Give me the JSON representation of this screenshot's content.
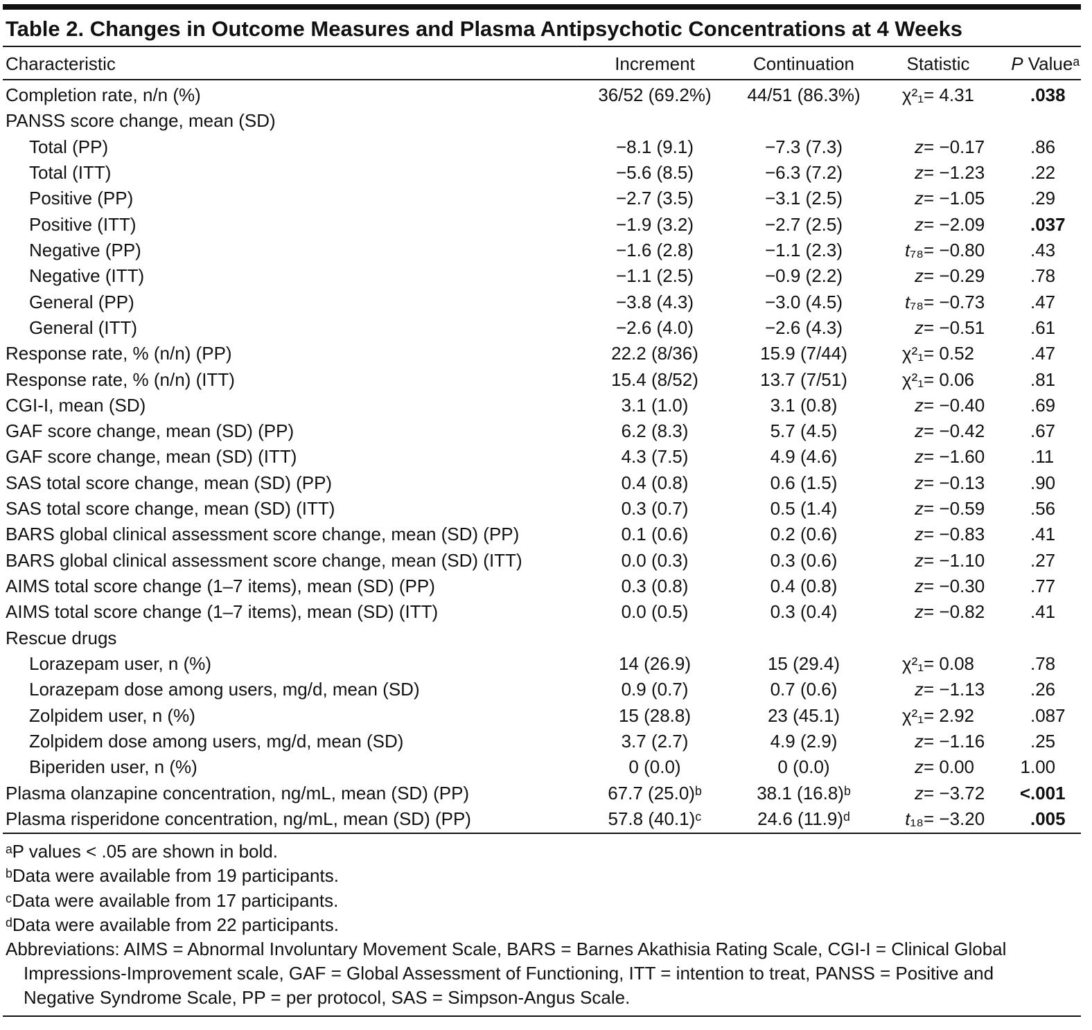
{
  "table": {
    "title": "Table 2. Changes in Outcome Measures and Plasma Antipsychotic Concentrations at 4 Weeks",
    "header": [
      "Characteristic",
      "Increment",
      "Continuation",
      "Statistic",
      "P Valueᵃ"
    ],
    "rows": [
      {
        "characteristic": "Completion rate, n/n (%)",
        "increment": "36/52 (69.2%)",
        "continuation": "44/51 (86.3%)",
        "statistic": "χ²₁ = 4.31",
        "p_value": ".038",
        "p_bold": true
      },
      {
        "characteristic": "PANSS score change, mean (SD)",
        "rows": [
          {
            "characteristic": "Total (PP)",
            "increment": "−8.1 (9.1)",
            "continuation": "−7.3 (7.3)",
            "statistic": "z = −0.17",
            "p_value": ".86"
          },
          {
            "characteristic": "Total (ITT)",
            "increment": "−5.6 (8.5)",
            "continuation": "−6.3 (7.2)",
            "statistic": "z = −1.23",
            "p_value": ".22"
          },
          {
            "characteristic": "Positive (PP)",
            "increment": "−2.7 (3.5)",
            "continuation": "−3.1 (2.5)",
            "statistic": "z = −1.05",
            "p_value": ".29"
          },
          {
            "characteristic": "Positive (ITT)",
            "increment": "−1.9 (3.2)",
            "continuation": "−2.7 (2.5)",
            "statistic": "z = −2.09",
            "p_value": ".037",
            "p_bold": true
          },
          {
            "characteristic": "Negative (PP)",
            "increment": "−1.6 (2.8)",
            "continuation": "−1.1 (2.3)",
            "statistic": "t₇₈ = −0.80",
            "p_value": ".43"
          },
          {
            "characteristic": "Negative (ITT)",
            "increment": "−1.1 (2.5)",
            "continuation": "−0.9 (2.2)",
            "statistic": "z = −0.29",
            "p_value": ".78"
          },
          {
            "characteristic": "General (PP)",
            "increment": "−3.8 (4.3)",
            "continuation": "−3.0 (4.5)",
            "statistic": "t₇₈ = −0.73",
            "p_value": ".47"
          },
          {
            "characteristic": "General (ITT)",
            "increment": "−2.6 (4.0)",
            "continuation": "−2.6 (4.3)",
            "statistic": "z = −0.51",
            "p_value": ".61"
          }
        ]
      },
      {
        "characteristic": "Response rate, % (n/n) (PP)",
        "increment": "22.2 (8/36)",
        "continuation": "15.9 (7/44)",
        "statistic": "χ²₁ = 0.52",
        "p_value": ".47"
      },
      {
        "characteristic": "Response rate, % (n/n) (ITT)",
        "increment": "15.4 (8/52)",
        "continuation": "13.7 (7/51)",
        "statistic": "χ²₁ = 0.06",
        "p_value": ".81"
      },
      {
        "characteristic": "CGI-I, mean (SD)",
        "increment": "3.1 (1.0)",
        "continuation": "3.1 (0.8)",
        "statistic": "z = −0.40",
        "p_value": ".69"
      },
      {
        "characteristic": "GAF score change, mean (SD) (PP)",
        "increment": "6.2 (8.3)",
        "continuation": "5.7 (4.5)",
        "statistic": "z = −0.42",
        "p_value": ".67"
      },
      {
        "characteristic": "GAF score change, mean (SD) (ITT)",
        "increment": "4.3 (7.5)",
        "continuation": "4.9 (4.6)",
        "statistic": "z = −1.60",
        "p_value": ".11"
      },
      {
        "characteristic": "SAS total score change, mean (SD) (PP)",
        "increment": "0.4 (0.8)",
        "continuation": "0.6 (1.5)",
        "statistic": "z = −0.13",
        "p_value": ".90"
      },
      {
        "characteristic": "SAS total score change, mean (SD) (ITT)",
        "increment": "0.3 (0.7)",
        "continuation": "0.5 (1.4)",
        "statistic": "z = −0.59",
        "p_value": ".56"
      },
      {
        "characteristic": "BARS global clinical assessment score change, mean (SD) (PP)",
        "increment": "0.1 (0.6)",
        "continuation": "0.2 (0.6)",
        "statistic": "z = −0.83",
        "p_value": ".41"
      },
      {
        "characteristic": "BARS global clinical assessment score change, mean (SD) (ITT)",
        "increment": "0.0 (0.3)",
        "continuation": "0.3 (0.6)",
        "statistic": "z = −1.10",
        "p_value": ".27"
      },
      {
        "characteristic": "AIMS total score change (1–7 items), mean (SD) (PP)",
        "increment": "0.3 (0.8)",
        "continuation": "0.4 (0.8)",
        "statistic": "z = −0.30",
        "p_value": ".77"
      },
      {
        "characteristic": "AIMS total score change (1–7 items), mean (SD) (ITT)",
        "increment": "0.0 (0.5)",
        "continuation": "0.3 (0.4)",
        "statistic": "z = −0.82",
        "p_value": ".41"
      },
      {
        "characteristic": "Rescue drugs",
        "rows": [
          {
            "characteristic": "Lorazepam user, n (%)",
            "increment": "14 (26.9)",
            "continuation": "15 (29.4)",
            "statistic": "χ²₁ = 0.08",
            "p_value": ".78"
          },
          {
            "characteristic": "Lorazepam dose among users, mg/d, mean (SD)",
            "increment": "0.9 (0.7)",
            "continuation": "0.7 (0.6)",
            "statistic": "z = −1.13",
            "p_value": ".26"
          },
          {
            "characteristic": "Zolpidem user, n (%)",
            "increment": "15 (28.8)",
            "continuation": "23 (45.1)",
            "statistic": "χ²₁ = 2.92",
            "p_value": ".087"
          },
          {
            "characteristic": "Zolpidem dose among users, mg/d, mean (SD)",
            "increment": "3.7 (2.7)",
            "continuation": "4.9 (2.9)",
            "statistic": "z = −1.16",
            "p_value": ".25"
          },
          {
            "characteristic": "Biperiden user, n (%)",
            "increment": "0 (0.0)",
            "continuation": "0 (0.0)",
            "statistic": "z = 0.00",
            "p_value": "1.00"
          }
        ]
      },
      {
        "characteristic": "Plasma olanzapine concentration, ng/mL, mean (SD) (PP)",
        "increment": "67.7 (25.0)ᵇ",
        "continuation": "38.1 (16.8)ᵇ",
        "statistic": "z = −3.72",
        "p_value": "<.001",
        "p_bold": true
      },
      {
        "characteristic": "Plasma risperidone concentration, ng/mL, mean (SD) (PP)",
        "increment": "57.8 (40.1)ᶜ",
        "continuation": "24.6 (11.9)ᵈ",
        "statistic": "t₁₈ = −3.20",
        "p_value": ".005",
        "p_bold": true
      }
    ],
    "footnotes": [
      "ᵃP values < .05 are shown in bold.",
      "ᵇData were available from 19 participants.",
      "ᶜData were available from 17 participants.",
      "ᵈData were available from 22 participants.",
      "Abbreviations: AIMS = Abnormal Involuntary Movement Scale, BARS = Barnes Akathisia Rating Scale, CGI-I = Clinical Global Impressions-Improvement scale, GAF = Global Assessment of Functioning, ITT = intention to treat, PANSS = Positive and Negative Syndrome Scale, PP = per protocol, SAS = Simpson-Angus Scale."
    ]
  }
}
